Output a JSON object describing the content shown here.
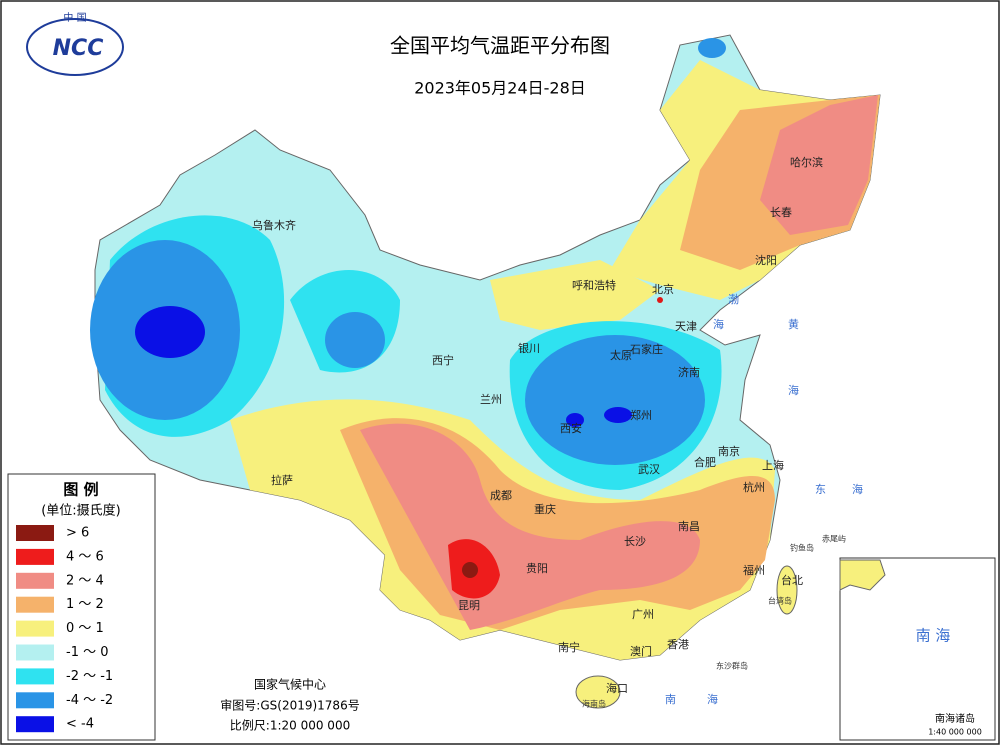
{
  "logo": {
    "top": "中 国",
    "main": "NCC"
  },
  "header": {
    "title": "全国平均气温距平分布图",
    "subtitle": "2023年05月24日-28日"
  },
  "legend": {
    "title": "图 例",
    "unit": "(单位:摄氏度)",
    "items": [
      {
        "label": "> 6",
        "color": "#8b1a12"
      },
      {
        "label": "4 ～ 6",
        "color": "#ee1c1c"
      },
      {
        "label": "2 ～ 4",
        "color": "#f08c84"
      },
      {
        "label": "1 ～ 2",
        "color": "#f5b26b"
      },
      {
        "label": "0 ～ 1",
        "color": "#f7f07d"
      },
      {
        "label": "-1 ～ 0",
        "color": "#b4f0f0"
      },
      {
        "label": "-2 ～ -1",
        "color": "#2fe2f0"
      },
      {
        "label": "-4 ～ -2",
        "color": "#2a94e6"
      },
      {
        "label": "< -4",
        "color": "#0a10e6"
      }
    ]
  },
  "cities": [
    "乌鲁木齐",
    "哈尔滨",
    "长春",
    "沈阳",
    "呼和浩特",
    "北京",
    "天津",
    "石家庄",
    "太原",
    "银川",
    "西宁",
    "兰州",
    "济南",
    "郑州",
    "西安",
    "南京",
    "合肥",
    "上海",
    "武汉",
    "杭州",
    "拉萨",
    "成都",
    "重庆",
    "南昌",
    "长沙",
    "贵阳",
    "福州",
    "台北",
    "昆明",
    "广州",
    "南宁",
    "澳门",
    "香港",
    "海口"
  ],
  "sea_labels": [
    "渤",
    "海",
    "黄",
    "海",
    "东",
    "海",
    "南",
    "海"
  ],
  "islands": [
    "钓鱼岛",
    "赤尾屿",
    "东沙群岛",
    "台湾岛",
    "海南岛"
  ],
  "inset": {
    "title": "南 海",
    "caption": "南海诸岛",
    "scale": "1:40 000 000"
  },
  "footer": {
    "org": "国家气候中心",
    "approval": "审图号:GS(2019)1786号",
    "scale": "比例尺:1:20 000 000"
  }
}
